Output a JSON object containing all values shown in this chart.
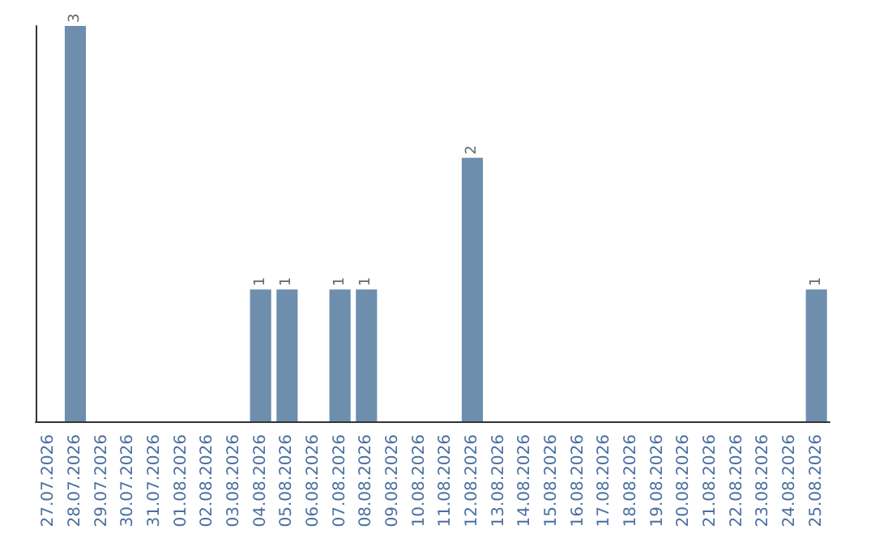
{
  "chart_data": {
    "type": "bar",
    "categories": [
      "27.07.2026",
      "28.07.2026",
      "29.07.2026",
      "30.07.2026",
      "31.07.2026",
      "01.08.2026",
      "02.08.2026",
      "03.08.2026",
      "04.08.2026",
      "05.08.2026",
      "06.08.2026",
      "07.08.2026",
      "08.08.2026",
      "09.08.2026",
      "10.08.2026",
      "11.08.2026",
      "12.08.2026",
      "13.08.2026",
      "14.08.2026",
      "15.08.2026",
      "16.08.2026",
      "17.08.2026",
      "18.08.2026",
      "19.08.2026",
      "20.08.2026",
      "21.08.2026",
      "22.08.2026",
      "23.08.2026",
      "24.08.2026",
      "25.08.2026"
    ],
    "values": [
      0,
      3,
      0,
      0,
      0,
      0,
      0,
      0,
      1,
      1,
      0,
      1,
      1,
      0,
      0,
      0,
      2,
      0,
      0,
      0,
      0,
      0,
      0,
      0,
      0,
      0,
      0,
      0,
      0,
      1
    ],
    "value_labels": [
      null,
      "3",
      null,
      null,
      null,
      null,
      null,
      null,
      "1",
      "1",
      null,
      "1",
      "1",
      null,
      null,
      null,
      "2",
      null,
      null,
      null,
      null,
      null,
      null,
      null,
      null,
      null,
      null,
      null,
      null,
      "1"
    ],
    "color": "#6e8eae",
    "tick_labels": "x"
  }
}
